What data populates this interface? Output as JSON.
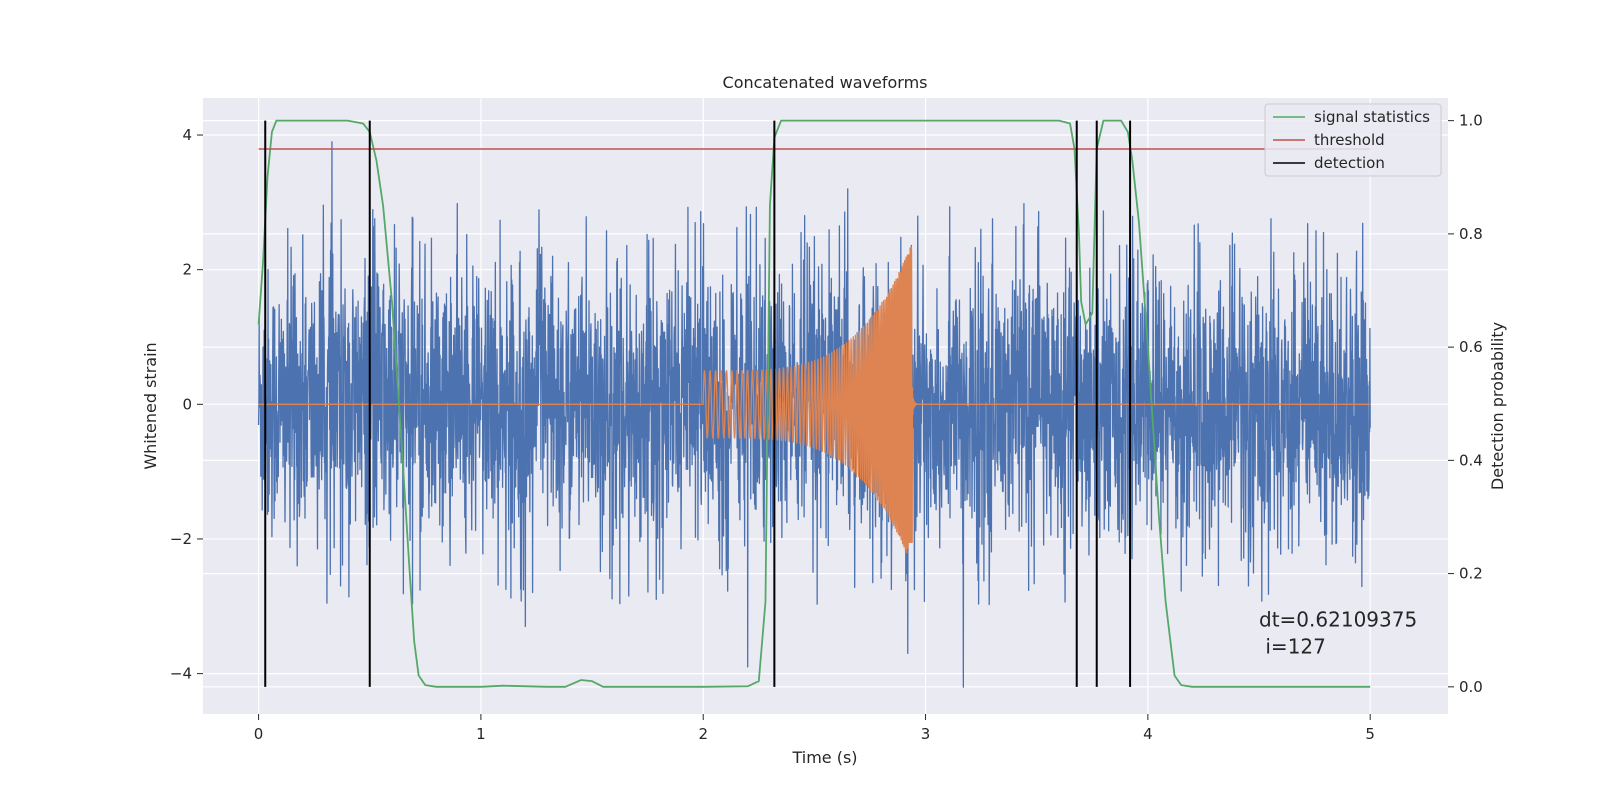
{
  "chart_data": {
    "type": "line",
    "title": "Concatenated waveforms",
    "xlabel": "Time (s)",
    "ylabel": "Whitened strain",
    "ylabel_right": "Detection probability",
    "xlim": [
      -0.25,
      5.35
    ],
    "ylim": [
      -4.6,
      4.55
    ],
    "ylim_right": [
      -0.048,
      1.04
    ],
    "xticks": [
      0,
      1,
      2,
      3,
      4,
      5
    ],
    "xtick_labels": [
      "0",
      "1",
      "2",
      "3",
      "4",
      "5"
    ],
    "yticks": [
      -4,
      -2,
      0,
      2,
      4
    ],
    "ytick_labels": [
      "−4",
      "−2",
      "0",
      "2",
      "4"
    ],
    "yticks_right": [
      0.0,
      0.2,
      0.4,
      0.6,
      0.8,
      1.0
    ],
    "ytick_labels_right": [
      "0.0",
      "0.2",
      "0.4",
      "0.6",
      "0.8",
      "1.0"
    ],
    "grid": true,
    "legend_position": "top-right",
    "legend": [
      "signal statistics",
      "threshold",
      "detection"
    ],
    "colors": {
      "strain": "#4c72b0",
      "injection": "#dd8452",
      "signal_statistics": "#55a868",
      "threshold": "#c44e52",
      "detection": "#000000",
      "background": "#eaeaf2"
    },
    "series": [
      {
        "axis": "left",
        "color": "#4c72b0",
        "style": "noisy",
        "x_range": [
          0,
          5
        ],
        "amplitude_envelope": 2.6,
        "peaks": [
          {
            "x": 0.03,
            "y": 4.1
          },
          {
            "x": 0.33,
            "y": 3.9
          },
          {
            "x": 2.2,
            "y": -3.9
          },
          {
            "x": 2.92,
            "y": -3.7
          },
          {
            "x": 3.17,
            "y": -4.2
          },
          {
            "x": 1.2,
            "y": -3.3
          },
          {
            "x": 2.65,
            "y": 3.2
          }
        ]
      },
      {
        "axis": "left",
        "color": "#dd8452",
        "style": "chirp",
        "x_range": [
          0,
          5
        ],
        "chirp_start": 2.0,
        "chirp_end": 2.94,
        "start_amplitude": 0.5,
        "peak_amplitude": 2.4,
        "min_value": -2.05
      },
      {
        "name": "signal statistics",
        "axis": "right",
        "color": "#55a868",
        "x": [
          0.0,
          0.02,
          0.04,
          0.06,
          0.08,
          0.1,
          0.15,
          0.4,
          0.47,
          0.5,
          0.53,
          0.56,
          0.6,
          0.64,
          0.68,
          0.7,
          0.72,
          0.75,
          0.8,
          1.0,
          1.1,
          1.3,
          1.38,
          1.45,
          1.5,
          1.55,
          1.6,
          2.0,
          2.2,
          2.25,
          2.28,
          2.3,
          2.32,
          2.35,
          2.4,
          3.6,
          3.65,
          3.67,
          3.69,
          3.7,
          3.72,
          3.75,
          3.77,
          3.8,
          3.84,
          3.88,
          3.91,
          3.93,
          3.96,
          4.0,
          4.05,
          4.08,
          4.12,
          4.15,
          4.2,
          4.5,
          5.0
        ],
        "values": [
          0.64,
          0.75,
          0.9,
          0.98,
          1.0,
          1.0,
          1.0,
          1.0,
          0.995,
          0.98,
          0.93,
          0.85,
          0.68,
          0.45,
          0.2,
          0.08,
          0.02,
          0.003,
          0.0,
          0.0,
          0.002,
          0.0,
          0.0,
          0.012,
          0.01,
          0.0,
          0.0,
          0.0,
          0.001,
          0.01,
          0.15,
          0.85,
          0.97,
          1.0,
          1.0,
          1.0,
          0.995,
          0.95,
          0.8,
          0.68,
          0.64,
          0.66,
          0.95,
          1.0,
          1.0,
          1.0,
          0.98,
          0.93,
          0.82,
          0.6,
          0.3,
          0.15,
          0.02,
          0.003,
          0.0,
          0.0,
          0.0
        ]
      },
      {
        "name": "threshold",
        "axis": "right",
        "color": "#c44e52",
        "x": [
          0,
          5
        ],
        "values": [
          0.95,
          0.95
        ]
      }
    ],
    "detections": [
      0.03,
      0.5,
      2.32,
      3.68,
      3.77,
      3.92
    ],
    "detections_axis": "right",
    "detection_range": [
      0.0,
      1.0
    ],
    "annotation": {
      "line1": "dt=0.62109375",
      "line2": " i=127",
      "x": 4.5,
      "y_line1": -3.3,
      "y_line2": -3.7
    }
  }
}
